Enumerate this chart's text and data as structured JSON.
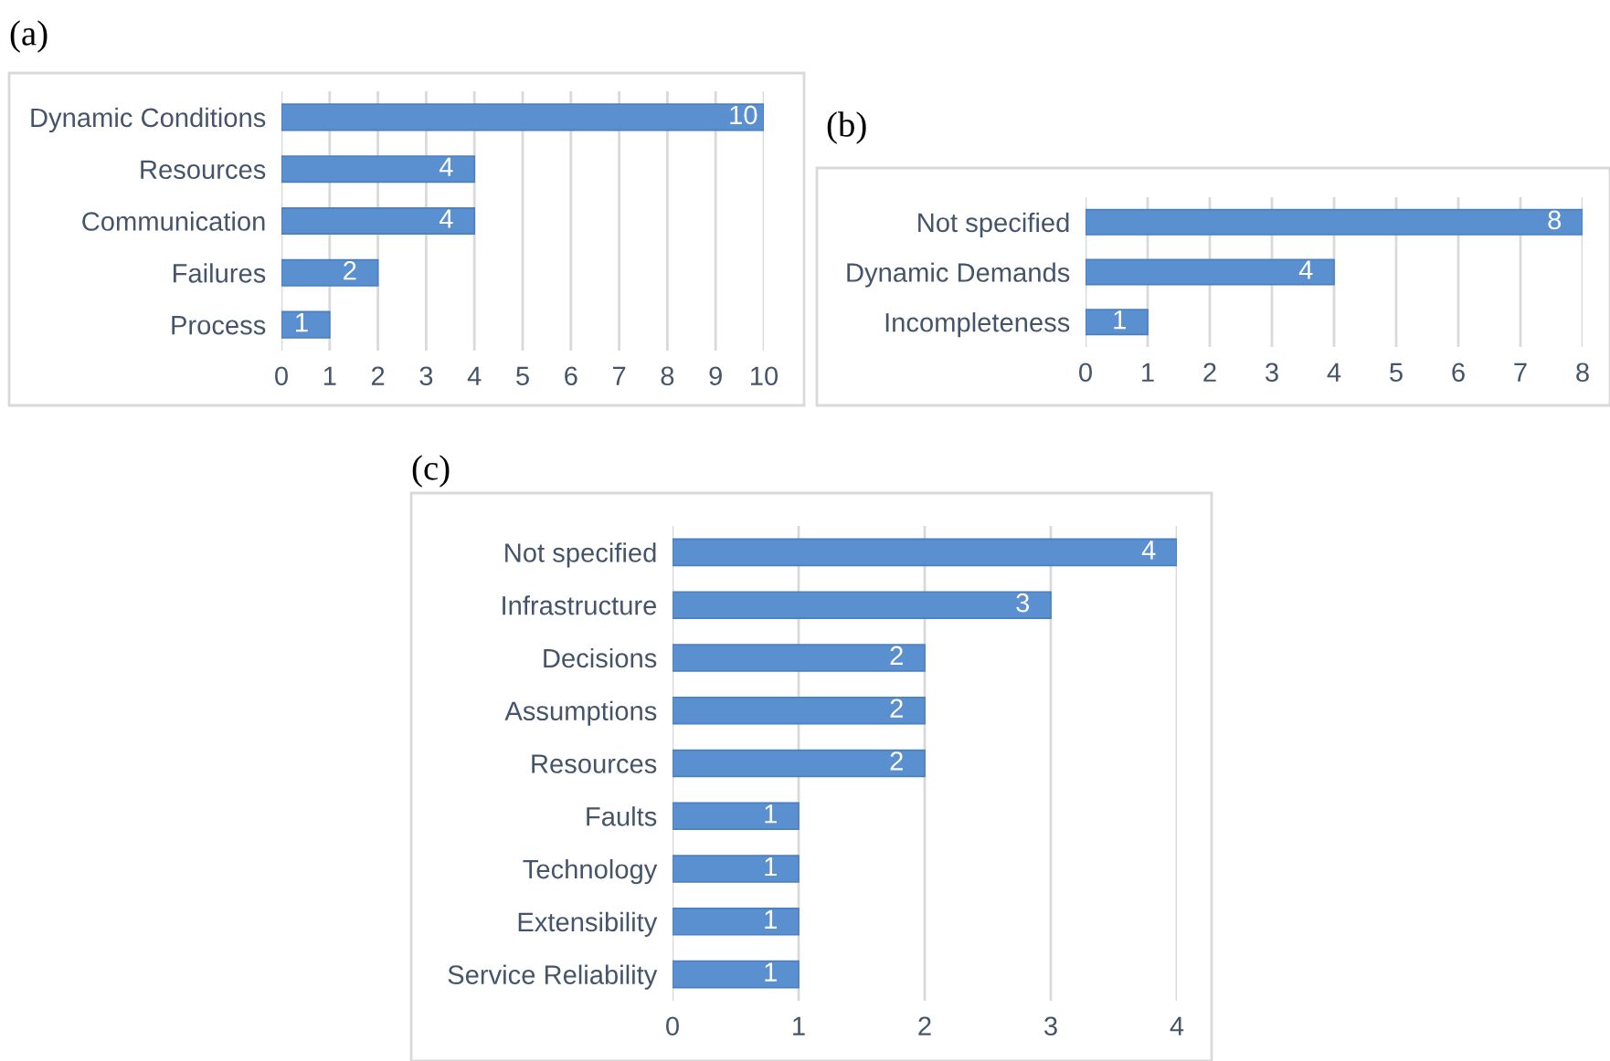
{
  "chart_data": [
    {
      "type": "bar",
      "orientation": "horizontal",
      "title": "(a)",
      "categories": [
        "Dynamic Conditions",
        "Resources",
        "Communication",
        "Failures",
        "Process"
      ],
      "values": [
        10,
        4,
        4,
        2,
        1
      ],
      "color": "#5b90d0",
      "xlim": [
        0,
        10
      ],
      "xticks": [
        0,
        1,
        2,
        3,
        4,
        5,
        6,
        7,
        8,
        9,
        10
      ],
      "grid": "x",
      "data_labels": true
    },
    {
      "type": "bar",
      "orientation": "horizontal",
      "title": "(b)",
      "categories": [
        "Not specified",
        "Dynamic Demands",
        "Incompleteness"
      ],
      "values": [
        8,
        4,
        1
      ],
      "color": "#5b90d0",
      "xlim": [
        0,
        8
      ],
      "xticks": [
        0,
        1,
        2,
        3,
        4,
        5,
        6,
        7,
        8
      ],
      "grid": "x",
      "data_labels": true
    },
    {
      "type": "bar",
      "orientation": "horizontal",
      "title": "(c)",
      "categories": [
        "Not specified",
        "Infrastructure",
        "Decisions",
        "Assumptions",
        "Resources",
        "Faults",
        "Technology",
        "Extensibility",
        "Service Reliability"
      ],
      "values": [
        4,
        3,
        2,
        2,
        2,
        1,
        1,
        1,
        1
      ],
      "color": "#5b90d0",
      "xlim": [
        0,
        4
      ],
      "xticks": [
        0,
        1,
        2,
        3,
        4
      ],
      "grid": "x",
      "data_labels": true
    }
  ]
}
